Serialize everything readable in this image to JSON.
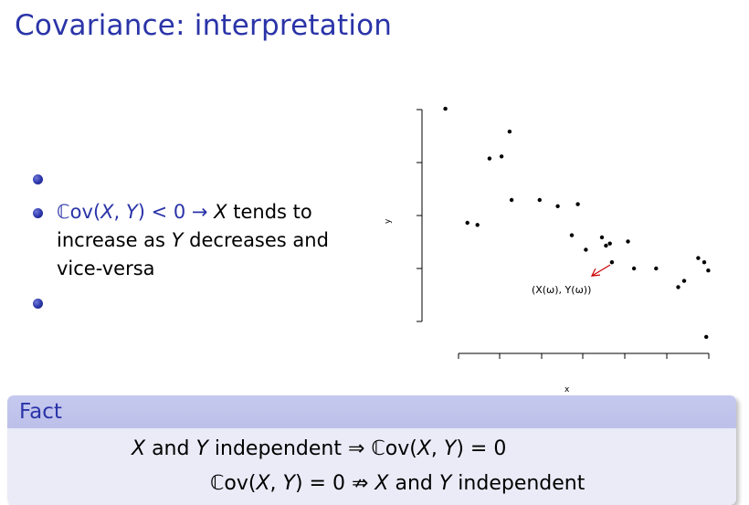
{
  "slide": {
    "title": "Covariance: interpretation"
  },
  "bullets": [
    {
      "text": ""
    },
    {
      "parts": {
        "cov": "ℂov(",
        "x": "X",
        "comma": ", ",
        "y": "Y",
        "rel": ") < 0 → ",
        "x2": "X",
        "rest1": " tends to increase as ",
        "y2": "Y",
        "rest2": " decreases and vice-versa"
      }
    },
    {
      "text": ""
    }
  ],
  "chart_data": {
    "type": "scatter",
    "xlabel": "x",
    "ylabel": "y",
    "annotation": "(X(ω), Y(ω))",
    "annotation_color": "#cc0000",
    "points": [
      {
        "x": 0.2,
        "y": 4.3
      },
      {
        "x": 0.75,
        "y": 1.55
      },
      {
        "x": 1.0,
        "y": 1.5
      },
      {
        "x": 1.3,
        "y": 3.1
      },
      {
        "x": 1.6,
        "y": 3.15
      },
      {
        "x": 1.8,
        "y": 3.75
      },
      {
        "x": 1.85,
        "y": 2.1
      },
      {
        "x": 2.55,
        "y": 2.1
      },
      {
        "x": 3.0,
        "y": 1.95
      },
      {
        "x": 3.5,
        "y": 2.0
      },
      {
        "x": 3.35,
        "y": 1.25
      },
      {
        "x": 3.7,
        "y": 0.9
      },
      {
        "x": 4.1,
        "y": 1.2
      },
      {
        "x": 4.2,
        "y": 1.0
      },
      {
        "x": 4.3,
        "y": 1.05
      },
      {
        "x": 4.35,
        "y": 0.6
      },
      {
        "x": 4.75,
        "y": 1.1
      },
      {
        "x": 4.9,
        "y": 0.45
      },
      {
        "x": 5.45,
        "y": 0.45
      },
      {
        "x": 6.0,
        "y": 0.0
      },
      {
        "x": 6.15,
        "y": 0.15
      },
      {
        "x": 6.5,
        "y": 0.7
      },
      {
        "x": 6.65,
        "y": 0.6
      },
      {
        "x": 6.75,
        "y": 0.4
      },
      {
        "x": 6.7,
        "y": -1.2
      }
    ],
    "highlight_point": {
      "x": 4.35,
      "y": 0.6
    },
    "xlim": [
      -0.2,
      6.9
    ],
    "ylim": [
      -1.4,
      4.5
    ],
    "grid": false
  },
  "fact": {
    "header": "Fact",
    "line1": {
      "x": "X",
      "and": " and ",
      "y": "Y",
      "rest": " independent  ⇒ ℂov(",
      "x2": "X",
      "comma": ", ",
      "y2": "Y",
      "end": ") = 0"
    },
    "line2": {
      "start": "ℂov(",
      "x": "X",
      "comma": ", ",
      "y": "Y",
      "mid": ") = 0 ⇏ ",
      "x2": "X",
      "and": " and ",
      "y2": "Y",
      "end": " independent"
    }
  }
}
